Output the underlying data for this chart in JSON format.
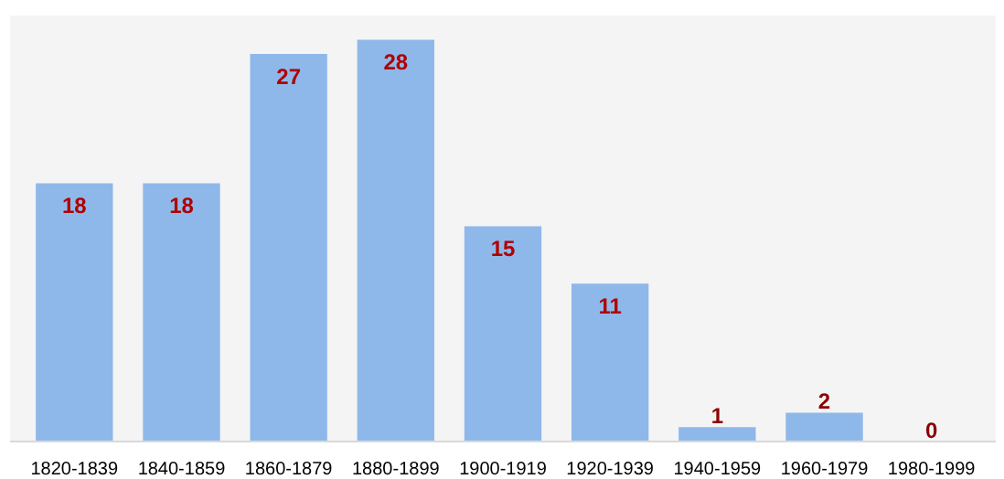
{
  "chart_data": {
    "type": "bar",
    "categories": [
      "1820-1839",
      "1840-1859",
      "1860-1879",
      "1880-1899",
      "1900-1919",
      "1920-1939",
      "1940-1959",
      "1960-1979",
      "1980-1999"
    ],
    "values": [
      18,
      18,
      27,
      28,
      15,
      11,
      1,
      2,
      0
    ],
    "color": "#8fb8ea",
    "data_labels": true,
    "grid": false
  }
}
